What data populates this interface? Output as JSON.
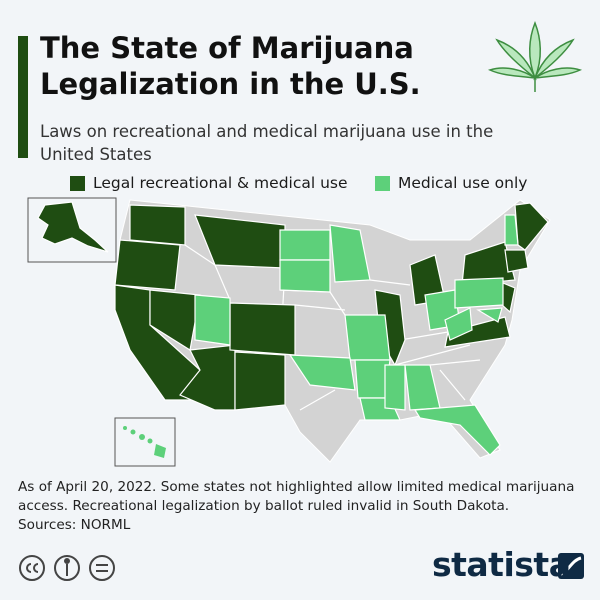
{
  "header": {
    "title": "The State of Marijuana Legalization in the U.S.",
    "subtitle": "Laws on recreational and medical marijuana use in the United States"
  },
  "legend": [
    {
      "label": "Legal recreational & medical use",
      "color": "#1f4d12"
    },
    {
      "label": "Medical use only",
      "color": "#5dd07a"
    }
  ],
  "notes": [
    "As of April 20, 2022. Some states not highlighted allow limited medical marijuana access. Recreational legalization by ballot ruled invalid in South Dakota.",
    "Sources: NORML"
  ],
  "footer": {
    "brand": "statista"
  }
}
